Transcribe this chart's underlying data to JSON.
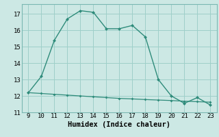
{
  "xlabel": "Humidex (Indice chaleur)",
  "x_humidex": [
    9,
    10,
    11,
    12,
    13,
    14,
    15,
    16,
    17,
    18,
    19,
    20,
    21,
    22,
    23
  ],
  "y_humidex": [
    12.2,
    13.2,
    15.4,
    16.7,
    17.2,
    17.1,
    16.1,
    16.1,
    16.3,
    15.6,
    13.0,
    12.0,
    11.55,
    11.9,
    11.45
  ],
  "x_baseline": [
    9,
    10,
    11,
    12,
    13,
    14,
    15,
    16,
    17,
    18,
    19,
    20,
    21,
    22,
    23
  ],
  "y_baseline": [
    12.2,
    12.15,
    12.1,
    12.05,
    12.0,
    11.95,
    11.9,
    11.85,
    11.82,
    11.78,
    11.75,
    11.72,
    11.68,
    11.65,
    11.62
  ],
  "line_color": "#2e8b7a",
  "bg_color": "#cce8e4",
  "grid_color": "#9ecfc9",
  "ylim": [
    11,
    17.6
  ],
  "xlim": [
    8.5,
    23.5
  ],
  "yticks": [
    11,
    12,
    13,
    14,
    15,
    16,
    17
  ],
  "xticks": [
    9,
    10,
    11,
    12,
    13,
    14,
    15,
    16,
    17,
    18,
    19,
    20,
    21,
    22,
    23
  ],
  "tick_fontsize": 6.5,
  "xlabel_fontsize": 7.5
}
